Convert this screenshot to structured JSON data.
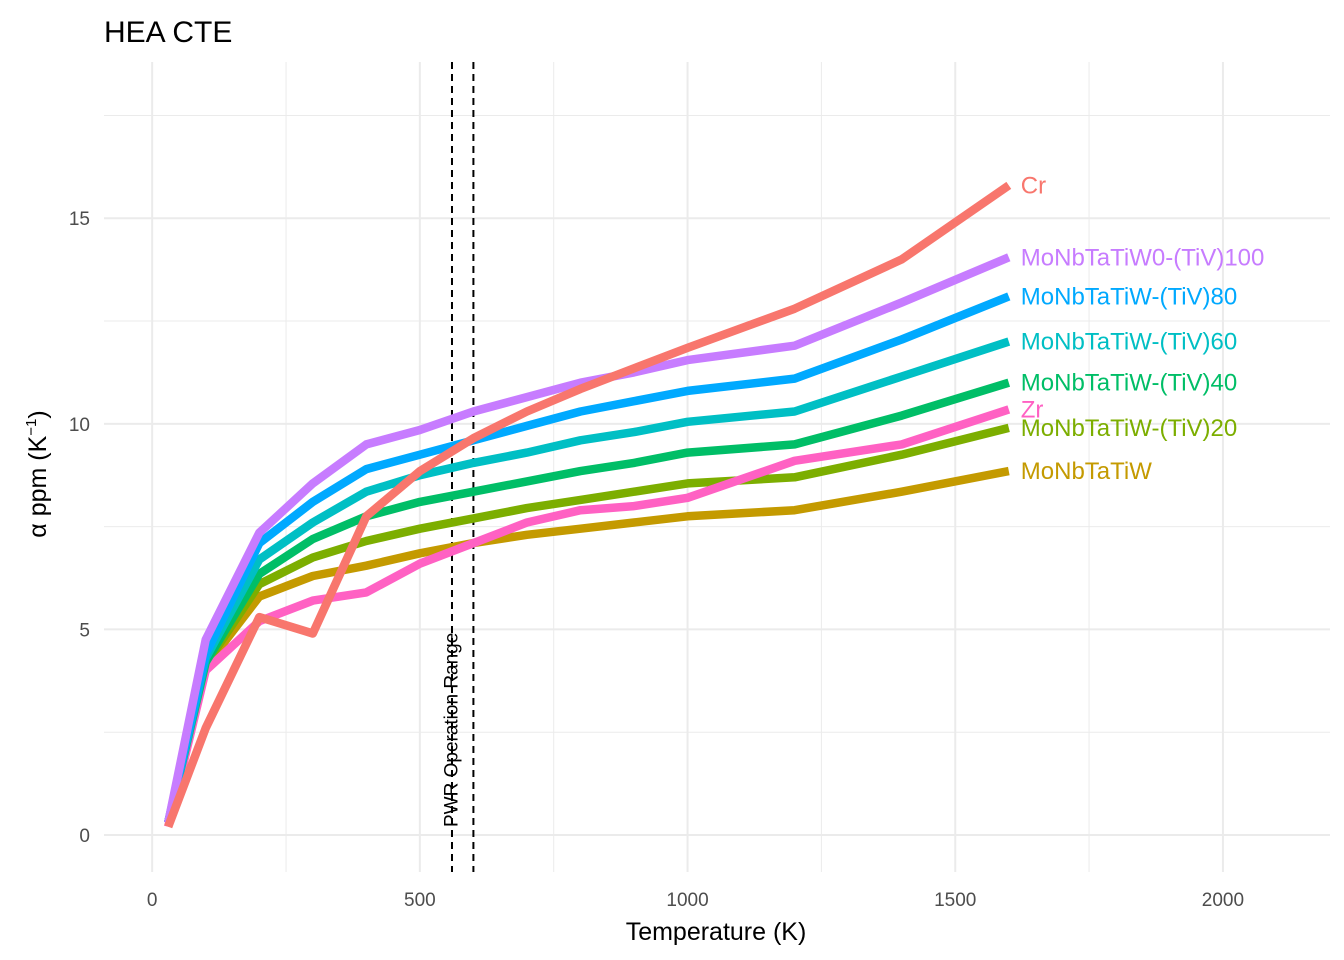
{
  "chart_data": {
    "type": "line",
    "title": "HEA CTE",
    "xlabel": "Temperature (K)",
    "ylabel_main": "α ppm (K",
    "ylabel_sup": "−1",
    "ylabel_close": ")",
    "xlim": [
      -90,
      2200
    ],
    "ylim": [
      -0.9,
      18.8
    ],
    "x_ticks": [
      0,
      500,
      1000,
      1500,
      2000
    ],
    "x_tick_labels": [
      "0",
      "500",
      "1000",
      "1500",
      "2000"
    ],
    "x_minor": [
      250,
      750,
      1250,
      1750
    ],
    "y_ticks": [
      0,
      5,
      10,
      15
    ],
    "y_tick_labels": [
      "0",
      "5",
      "10",
      "15"
    ],
    "y_minor": [
      2.5,
      7.5,
      12.5,
      17.5
    ],
    "grid": true,
    "legend": "none (direct labels at line ends)",
    "vlines": [
      560,
      600
    ],
    "annotation": {
      "text": "PWR Operation Range",
      "x": 580,
      "y": 0
    },
    "series": [
      {
        "name": "MoNbTaTiW",
        "color": "#C49A00",
        "x": [
          30,
          100,
          200,
          300,
          400,
          500,
          600,
          700,
          800,
          900,
          1000,
          1200,
          1400,
          1600
        ],
        "y": [
          0.3,
          4.1,
          5.8,
          6.3,
          6.55,
          6.85,
          7.1,
          7.3,
          7.45,
          7.6,
          7.75,
          7.9,
          8.35,
          8.85
        ]
      },
      {
        "name": "MoNbTaTiW-(TiV)20",
        "color": "#7CAE00",
        "x": [
          30,
          100,
          200,
          300,
          400,
          500,
          600,
          700,
          800,
          900,
          1000,
          1200,
          1400,
          1600
        ],
        "y": [
          0.3,
          4.15,
          6.1,
          6.75,
          7.15,
          7.45,
          7.7,
          7.95,
          8.15,
          8.35,
          8.55,
          8.7,
          9.25,
          9.9
        ]
      },
      {
        "name": "Zr",
        "color": "#FF61C3",
        "x": [
          30,
          100,
          200,
          300,
          400,
          500,
          600,
          700,
          800,
          900,
          1000,
          1200,
          1400,
          1600
        ],
        "y": [
          0.2,
          4.0,
          5.2,
          5.7,
          5.9,
          6.6,
          7.1,
          7.6,
          7.9,
          8.0,
          8.2,
          9.1,
          9.5,
          10.35
        ]
      },
      {
        "name": "MoNbTaTiW-(TiV)40",
        "color": "#00BE67",
        "x": [
          30,
          100,
          200,
          300,
          400,
          500,
          600,
          700,
          800,
          900,
          1000,
          1200,
          1400,
          1600
        ],
        "y": [
          0.3,
          4.2,
          6.35,
          7.2,
          7.75,
          8.1,
          8.35,
          8.6,
          8.85,
          9.05,
          9.3,
          9.5,
          10.2,
          11.0
        ]
      },
      {
        "name": "MoNbTaTiW-(TiV)60",
        "color": "#00BFC4",
        "x": [
          30,
          100,
          200,
          300,
          400,
          500,
          600,
          700,
          800,
          900,
          1000,
          1200,
          1400,
          1600
        ],
        "y": [
          0.3,
          4.3,
          6.7,
          7.6,
          8.35,
          8.75,
          9.05,
          9.3,
          9.6,
          9.8,
          10.05,
          10.3,
          11.15,
          12.0
        ]
      },
      {
        "name": "MoNbTaTiW-(TiV)80",
        "color": "#00A9FF",
        "x": [
          30,
          100,
          200,
          300,
          400,
          500,
          600,
          700,
          800,
          900,
          1000,
          1200,
          1400,
          1600
        ],
        "y": [
          0.3,
          4.4,
          7.1,
          8.1,
          8.9,
          9.25,
          9.6,
          9.95,
          10.3,
          10.55,
          10.8,
          11.1,
          12.05,
          13.1
        ]
      },
      {
        "name": "MoNbTaTiW0-(TiV)100",
        "color": "#C77CFF",
        "x": [
          30,
          100,
          200,
          300,
          400,
          500,
          600,
          700,
          800,
          900,
          1000,
          1200,
          1400,
          1600
        ],
        "y": [
          0.3,
          4.75,
          7.35,
          8.55,
          9.5,
          9.85,
          10.3,
          10.65,
          11.0,
          11.25,
          11.55,
          11.9,
          12.95,
          14.05
        ]
      },
      {
        "name": "Cr",
        "color": "#F8766D",
        "x": [
          30,
          100,
          200,
          300,
          400,
          500,
          600,
          700,
          800,
          900,
          1000,
          1200,
          1400,
          1600
        ],
        "y": [
          0.2,
          2.6,
          5.3,
          4.9,
          7.75,
          8.85,
          9.65,
          10.3,
          10.85,
          11.35,
          11.85,
          12.8,
          14.0,
          15.8
        ]
      }
    ]
  }
}
